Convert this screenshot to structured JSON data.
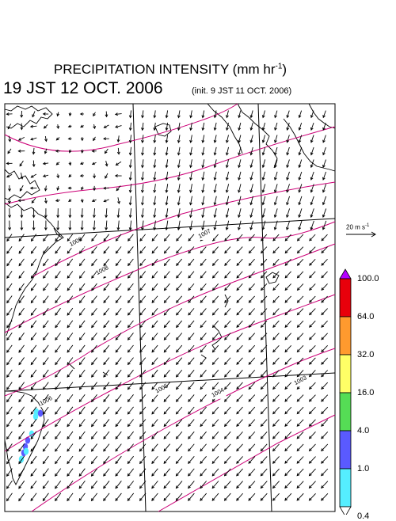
{
  "title": {
    "main": "PRECIPITATION INTENSITY (mm hr",
    "exp": "-1",
    "close": ")"
  },
  "valid_time": "19 JST 12 OCT. 2006",
  "init_time": "(init. 9 JST 11 OCT. 2006)",
  "reference_vector": {
    "value": "20 m s",
    "exp": "-1"
  },
  "isobars": [
    {
      "label": "1009",
      "label_pos": [
        0.2,
        0.35
      ]
    },
    {
      "label": "1008",
      "label_pos": [
        0.28,
        0.42
      ]
    },
    {
      "label": "1007",
      "label_pos": [
        0.59,
        0.33
      ]
    },
    {
      "label": "1006",
      "label_pos": [
        0.11,
        0.74
      ]
    },
    {
      "label": "1005",
      "label_pos": [
        0.46,
        0.71
      ]
    },
    {
      "label": "1004",
      "label_pos": [
        0.63,
        0.72
      ]
    },
    {
      "label": "1003",
      "label_pos": [
        0.88,
        0.69
      ]
    }
  ],
  "colorbar": {
    "levels": [
      "100.0",
      "64.0",
      "32.0",
      "16.0",
      "4.0",
      "1.0",
      "0.4"
    ],
    "colors": [
      "#e8000b",
      "#ff9a2e",
      "#ffff66",
      "#55dd55",
      "#5a5aff",
      "#55eeff"
    ],
    "over_color": "#b400ff",
    "under_color": "#ffffff"
  },
  "colors": {
    "isobar": "#cc0077",
    "grid": "#000000",
    "coast": "#000000",
    "wind": "#000000"
  }
}
